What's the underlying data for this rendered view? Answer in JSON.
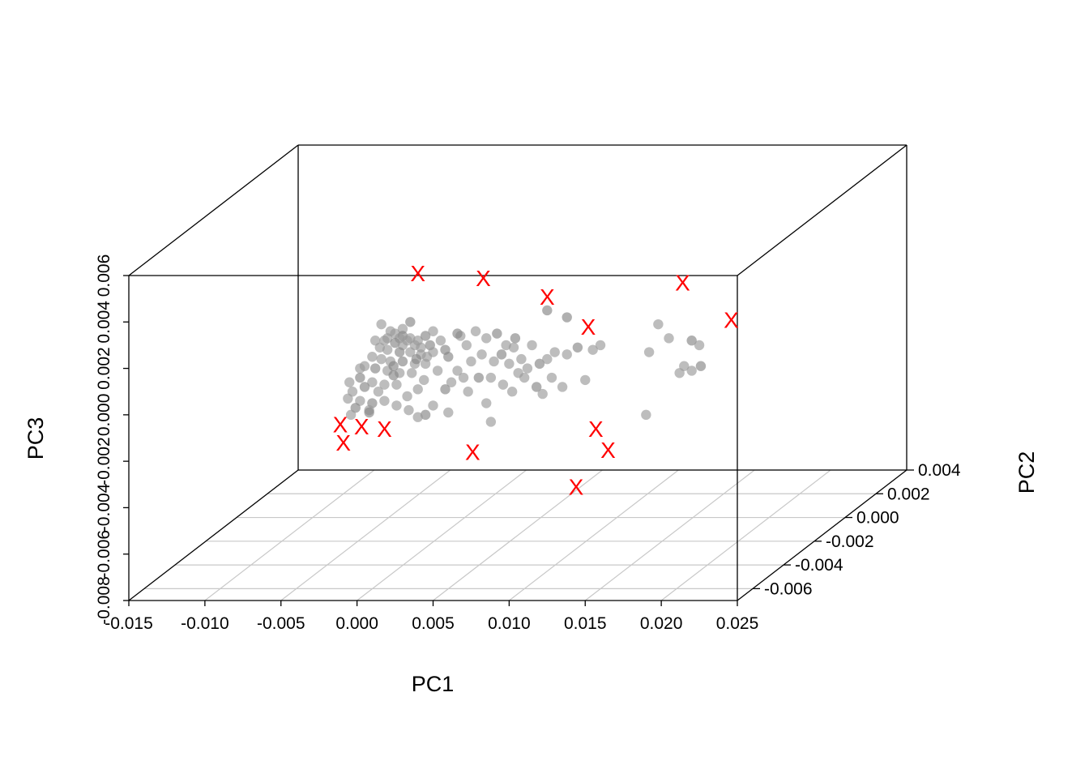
{
  "chart_data": {
    "type": "scatter",
    "projection": "3d-box",
    "axes": {
      "x": {
        "label": "PC1",
        "range": [
          -0.015,
          0.025
        ],
        "ticks": [
          -0.015,
          -0.01,
          -0.005,
          0.0,
          0.005,
          0.01,
          0.015,
          0.02,
          0.025
        ],
        "tick_labels": [
          "-0.015",
          "-0.010",
          "-0.005",
          "0.000",
          "0.005",
          "0.010",
          "0.015",
          "0.020",
          "0.025"
        ]
      },
      "y": {
        "label": "PC2",
        "range": [
          -0.007,
          0.004
        ],
        "ticks": [
          -0.006,
          -0.004,
          -0.002,
          0.0,
          0.002,
          0.004
        ],
        "tick_labels": [
          "-0.006",
          "-0.004",
          "-0.002",
          "0.000",
          "0.002",
          "0.004"
        ]
      },
      "z": {
        "label": "PC3",
        "range": [
          -0.008,
          0.006
        ],
        "ticks": [
          -0.008,
          -0.006,
          -0.004,
          -0.002,
          0.0,
          0.002,
          0.004,
          0.006
        ],
        "tick_labels": [
          "-0.008",
          "-0.006",
          "-0.004",
          "-0.002",
          "0.000",
          "0.002",
          "0.004",
          "0.006"
        ]
      }
    },
    "grid": "floor",
    "series": [
      {
        "marker": "circle",
        "color": "#999999",
        "points_xz": [
          [
            0.0035,
            0.004
          ],
          [
            0.003,
            0.0037
          ],
          [
            0.0022,
            0.0036
          ],
          [
            0.0025,
            0.0035
          ],
          [
            0.003,
            0.0034
          ],
          [
            0.0028,
            0.0033
          ],
          [
            0.0035,
            0.0033
          ],
          [
            0.004,
            0.0032
          ],
          [
            0.0045,
            0.0034
          ],
          [
            0.005,
            0.0036
          ],
          [
            0.002,
            0.0033
          ],
          [
            0.0018,
            0.0032
          ],
          [
            0.0025,
            0.0031
          ],
          [
            0.003,
            0.003
          ],
          [
            0.0038,
            0.003
          ],
          [
            0.0042,
            0.0029
          ],
          [
            0.0048,
            0.003
          ],
          [
            0.0055,
            0.0032
          ],
          [
            0.0015,
            0.0029
          ],
          [
            0.002,
            0.0028
          ],
          [
            0.0028,
            0.0027
          ],
          [
            0.0035,
            0.0027
          ],
          [
            0.0042,
            0.0026
          ],
          [
            0.005,
            0.0027
          ],
          [
            0.0058,
            0.0028
          ],
          [
            0.001,
            0.0025
          ],
          [
            0.0016,
            0.0024
          ],
          [
            0.0022,
            0.0023
          ],
          [
            0.003,
            0.0023
          ],
          [
            0.0038,
            0.0022
          ],
          [
            0.0045,
            0.0022
          ],
          [
            0.0005,
            0.0021
          ],
          [
            0.0012,
            0.002
          ],
          [
            0.002,
            0.0019
          ],
          [
            0.0028,
            0.0018
          ],
          [
            0.0036,
            0.0018
          ],
          [
            0.0002,
            0.0016
          ],
          [
            0.001,
            0.0014
          ],
          [
            0.0018,
            0.0013
          ],
          [
            0.0026,
            0.0013
          ],
          [
            0.0005,
            0.0012
          ],
          [
            0.0014,
            0.001
          ],
          [
            -0.0003,
            0.001
          ],
          [
            0.0002,
            0.0006
          ],
          [
            0.001,
            0.0005
          ],
          [
            0.0018,
            0.0006
          ],
          [
            0.0026,
            0.0004
          ],
          [
            0.0034,
            0.0002
          ],
          [
            -0.0001,
            0.0003
          ],
          [
            0.0008,
            0.0002
          ],
          [
            0.0062,
            0.0014
          ],
          [
            0.007,
            0.0016
          ],
          [
            0.0058,
            0.0011
          ],
          [
            0.0075,
            0.0023
          ],
          [
            0.0082,
            0.0026
          ],
          [
            0.009,
            0.0023
          ],
          [
            0.0095,
            0.0026
          ],
          [
            0.01,
            0.0022
          ],
          [
            0.0108,
            0.0024
          ],
          [
            0.0112,
            0.002
          ],
          [
            0.012,
            0.0022
          ],
          [
            0.0125,
            0.0024
          ],
          [
            0.013,
            0.0027
          ],
          [
            0.0098,
            0.003
          ],
          [
            0.0104,
            0.0033
          ],
          [
            0.0115,
            0.003
          ],
          [
            0.0085,
            0.0033
          ],
          [
            0.0078,
            0.0036
          ],
          [
            0.0092,
            0.0035
          ],
          [
            0.0068,
            0.0034
          ],
          [
            0.0072,
            0.003
          ],
          [
            0.0088,
            0.0016
          ],
          [
            0.008,
            0.0016
          ],
          [
            0.0096,
            0.0013
          ],
          [
            0.0102,
            0.001
          ],
          [
            0.011,
            0.0016
          ],
          [
            0.0118,
            0.0012
          ],
          [
            0.0122,
            0.0009
          ],
          [
            0.0128,
            0.0016
          ],
          [
            0.0138,
            0.0026
          ],
          [
            0.0145,
            0.0029
          ],
          [
            0.0155,
            0.0028
          ],
          [
            0.016,
            0.003
          ],
          [
            0.015,
            0.0015
          ],
          [
            0.0138,
            0.0042
          ],
          [
            0.0135,
            0.0012
          ],
          [
            0.005,
            0.0004
          ],
          [
            0.006,
            0.0001
          ],
          [
            0.0045,
            0.0
          ],
          [
            0.004,
            -0.0001
          ],
          [
            0.0085,
            0.0005
          ],
          [
            0.0088,
            -0.0003
          ],
          [
            0.0008,
            0.0001
          ],
          [
            -0.0004,
            0.0
          ],
          [
            0.0192,
            0.0027
          ],
          [
            0.0205,
            0.0033
          ],
          [
            0.022,
            0.0032
          ],
          [
            0.0225,
            0.003
          ],
          [
            0.0212,
            0.0018
          ],
          [
            0.022,
            0.0019
          ],
          [
            0.0226,
            0.0021
          ],
          [
            0.019,
            0.0
          ],
          [
            0.0215,
            0.0021
          ],
          [
            0.0198,
            0.0039
          ],
          [
            0.0066,
            0.0035
          ],
          [
            0.0033,
            0.0032
          ],
          [
            0.0046,
            0.0025
          ],
          [
            0.0053,
            0.0019
          ],
          [
            0.0024,
            0.0017
          ],
          [
            0.0033,
            0.0008
          ],
          [
            0.004,
            0.0011
          ],
          [
            0.0012,
            0.0032
          ],
          [
            0.006,
            0.0025
          ],
          [
            0.0066,
            0.0019
          ],
          [
            0.0103,
            0.0029
          ],
          [
            0.0106,
            0.0018
          ],
          [
            0.0125,
            0.0045
          ],
          [
            0.0073,
            0.001
          ],
          [
            -0.0005,
            0.0014
          ],
          [
            0.0016,
            0.0039
          ],
          [
            0.0039,
            0.0024
          ],
          [
            0.0044,
            0.0015
          ],
          [
            0.0002,
            0.002
          ],
          [
            -0.0006,
            0.0007
          ],
          [
            0.0024,
            0.0021
          ]
        ]
      },
      {
        "marker": "X",
        "color": "#ff0000",
        "points_xz": [
          [
            0.004,
            0.0061
          ],
          [
            0.0083,
            0.0059
          ],
          [
            0.0125,
            0.0051
          ],
          [
            0.0152,
            0.0038
          ],
          [
            0.0214,
            0.0057
          ],
          [
            0.0246,
            0.0041
          ],
          [
            -0.0011,
            -0.0004
          ],
          [
            -0.0009,
            -0.0012
          ],
          [
            0.0003,
            -0.0005
          ],
          [
            0.0018,
            -0.0006
          ],
          [
            0.0076,
            -0.0016
          ],
          [
            0.0157,
            -0.0006
          ],
          [
            0.0165,
            -0.0015
          ],
          [
            0.0144,
            -0.0031
          ]
        ]
      }
    ]
  }
}
